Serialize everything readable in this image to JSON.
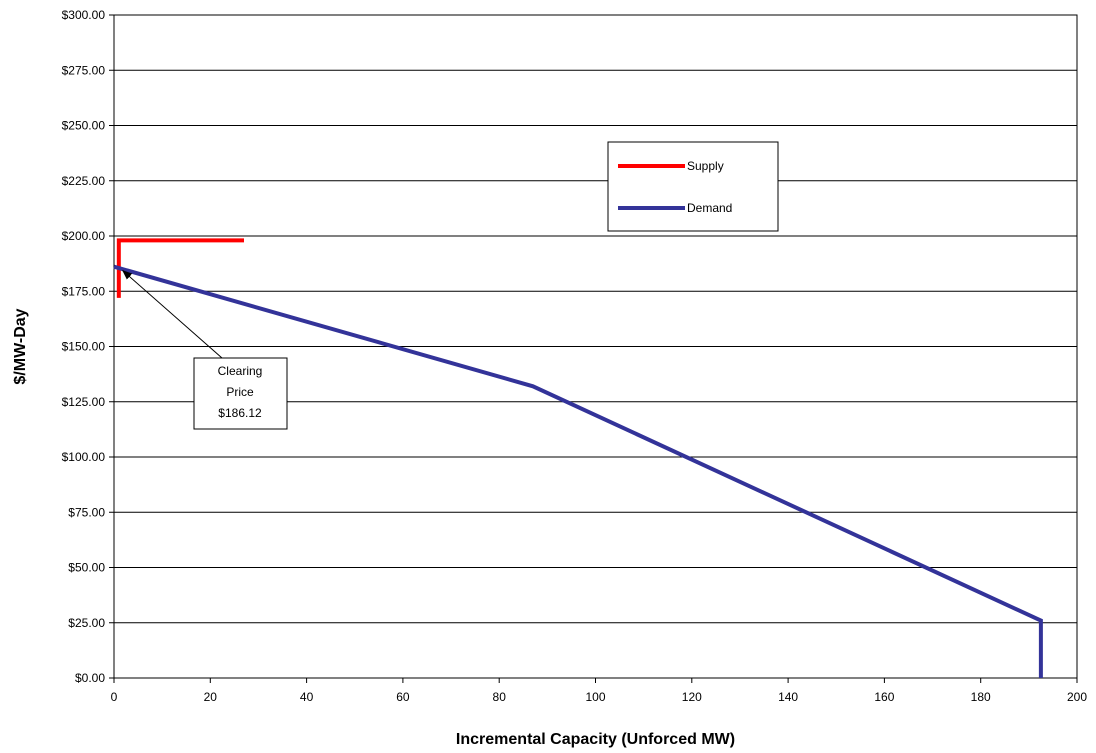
{
  "chart_data": {
    "type": "line",
    "title": "",
    "xlabel": "Incremental Capacity (Unforced MW)",
    "ylabel": "$/MW-Day",
    "xlim": [
      0,
      200
    ],
    "ylim": [
      0,
      300
    ],
    "x_ticks": [
      "0",
      "20",
      "40",
      "60",
      "80",
      "100",
      "120",
      "140",
      "160",
      "180",
      "200"
    ],
    "y_ticks": [
      "$0.00",
      "$25.00",
      "$50.00",
      "$75.00",
      "$100.00",
      "$125.00",
      "$150.00",
      "$175.00",
      "$200.00",
      "$225.00",
      "$250.00",
      "$275.00",
      "$300.00"
    ],
    "grid": "horizontal",
    "legend_position": "upper-center-right",
    "series": [
      {
        "name": "Supply",
        "color": "#ff0000",
        "points": [
          [
            1,
            172
          ],
          [
            1,
            198
          ],
          [
            27,
            198
          ]
        ]
      },
      {
        "name": "Demand",
        "color": "#333399",
        "points": [
          [
            0,
            186.12
          ],
          [
            87,
            132
          ],
          [
            192.5,
            26
          ],
          [
            192.5,
            0
          ]
        ]
      }
    ],
    "annotation": {
      "lines": [
        "Clearing",
        "Price",
        "$186.12"
      ],
      "target": [
        1,
        186.12
      ]
    }
  }
}
